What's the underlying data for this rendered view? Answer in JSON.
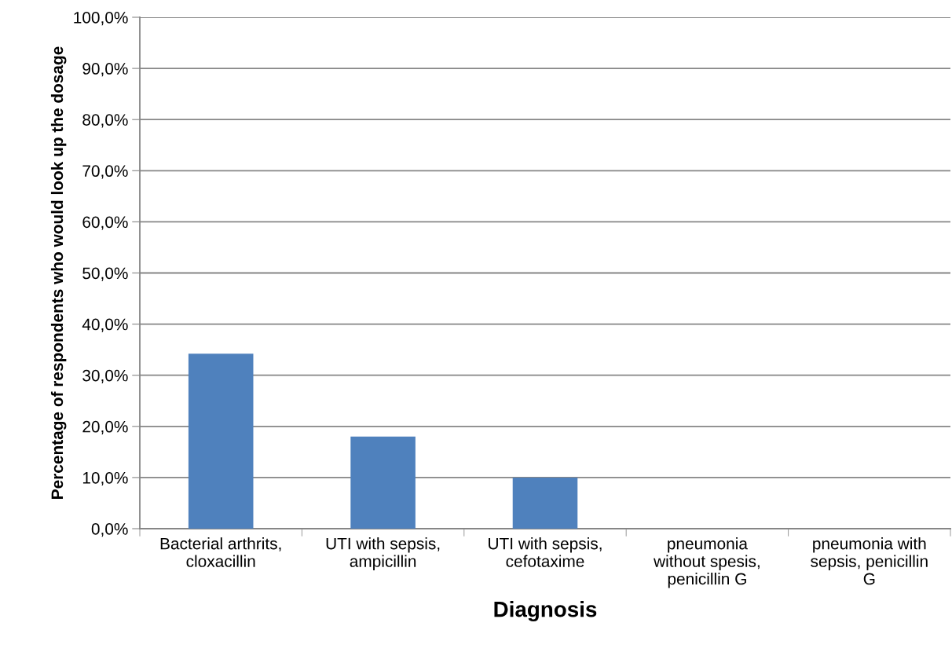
{
  "chart_data": {
    "type": "bar",
    "xlabel": "Diagnosis",
    "ylabel": "Percentage of respondents who would look up the dosage",
    "categories": [
      "Bacterial arthrits,\ncloxacillin",
      "UTI with sepsis,\nampicillin",
      "UTI with sepsis,\ncefotaxime",
      "pneumonia\nwithout spesis,\npenicillin G",
      "pneumonia with\nsepsis, penicillin\nG"
    ],
    "values": [
      34.2,
      18.0,
      10.0,
      0,
      0
    ],
    "color": "#4f81bd",
    "ylim": [
      0,
      100
    ],
    "yticks": [
      {
        "value": 0,
        "label": "0,0%"
      },
      {
        "value": 10,
        "label": "10,0%"
      },
      {
        "value": 20,
        "label": "20,0%"
      },
      {
        "value": 30,
        "label": "30,0%"
      },
      {
        "value": 40,
        "label": "40,0%"
      },
      {
        "value": 50,
        "label": "50,0%"
      },
      {
        "value": 60,
        "label": "60,0%"
      },
      {
        "value": 70,
        "label": "70,0%"
      },
      {
        "value": 80,
        "label": "80,0%"
      },
      {
        "value": 90,
        "label": "90,0%"
      },
      {
        "value": 100,
        "label": "100,0%"
      }
    ],
    "grid": "y",
    "legend": false
  }
}
